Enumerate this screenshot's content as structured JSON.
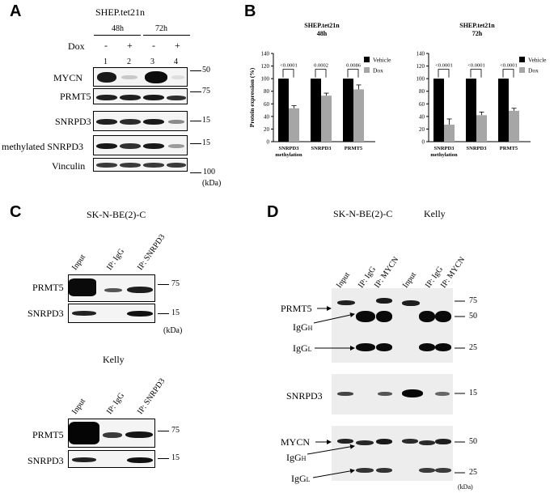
{
  "panelA": {
    "letter": "A",
    "cell_line": "SHEP.tet21n",
    "time_48": "48h",
    "time_72": "72h",
    "dox_label": "Dox",
    "dox_states": [
      "-",
      "+",
      "-",
      "+"
    ],
    "lanes": [
      "1",
      "2",
      "3",
      "4"
    ],
    "rows": [
      {
        "label": "MYCN",
        "mw": "50"
      },
      {
        "label": "PRMT5",
        "mw": "75"
      },
      {
        "label": "SNRPD3",
        "mw": "15"
      },
      {
        "label": "methylated SNRPD3",
        "mw": "15"
      },
      {
        "label": "Vinculin",
        "mw": "100"
      }
    ],
    "unit": "(kDa)"
  },
  "panelB": {
    "letter": "B",
    "legend": [
      "Vehicle",
      "Dox"
    ],
    "colors": {
      "vehicle": "#000000",
      "dox": "#a6a6a6"
    }
  },
  "chart_data": [
    {
      "type": "bar",
      "title": "SHEP.tet21n",
      "subtitle": "48h",
      "ylabel": "Protein expression (%)",
      "ylim": [
        0,
        140
      ],
      "yticks": [
        0,
        20,
        40,
        60,
        80,
        100,
        120,
        140
      ],
      "categories": [
        "SNRPD3 methylation",
        "SNRPD3",
        "PRMT5"
      ],
      "category_lines": [
        [
          "SNRPD3",
          "methylation"
        ],
        [
          "SNRPD3"
        ],
        [
          "PRMT5"
        ]
      ],
      "series": [
        {
          "name": "Vehicle",
          "values": [
            100,
            100,
            100
          ]
        },
        {
          "name": "Dox",
          "values": [
            53,
            73,
            83
          ]
        }
      ],
      "errors": [
        4,
        4,
        7
      ],
      "pvalues": [
        "<0.0001",
        "0.0002",
        "0.0086"
      ],
      "legend_position": "top-right"
    },
    {
      "type": "bar",
      "title": "SHEP.tet21n",
      "subtitle": "72h",
      "ylabel": "",
      "ylim": [
        0,
        140
      ],
      "yticks": [
        0,
        20,
        40,
        60,
        80,
        100,
        120,
        140
      ],
      "categories": [
        "SNRPD3 methylation",
        "SNRPD3",
        "PRMT5"
      ],
      "category_lines": [
        [
          "SNRPD3",
          "methylation"
        ],
        [
          "SNRPD3"
        ],
        [
          "PRMT5"
        ]
      ],
      "series": [
        {
          "name": "Vehicle",
          "values": [
            100,
            100,
            100
          ]
        },
        {
          "name": "Dox",
          "values": [
            27,
            42,
            49
          ]
        }
      ],
      "errors": [
        9,
        5,
        4
      ],
      "pvalues": [
        "<0.0001",
        "<0.0001",
        "<0.0001"
      ],
      "legend_position": "top-right"
    }
  ],
  "panelC": {
    "letter": "C",
    "cell_line_1": "SK-N-BE(2)-C",
    "cell_line_2": "Kelly",
    "lanes": [
      "Input",
      "IP: IgG",
      "IP: SNRPD3"
    ],
    "rows": [
      {
        "label": "PRMT5",
        "mw": "75"
      },
      {
        "label": "SNRPD3",
        "mw": "15"
      }
    ],
    "unit": "(kDa)"
  },
  "panelD": {
    "letter": "D",
    "cell_line_1": "SK-N-BE(2)-C",
    "cell_line_2": "Kelly",
    "lanes": [
      "Input",
      "IP: IgG",
      "IP: MYCN",
      "Input",
      "IP: IgG",
      "IP: MYCN"
    ],
    "labels": {
      "prmt5": "PRMT5",
      "igg_h": "IgG",
      "igg_h_sub": "H",
      "igg_l": "IgG",
      "igg_l_sub": "L",
      "snrpd3": "SNRPD3",
      "mycn": "MYCN"
    },
    "markers": [
      "75",
      "50",
      "25",
      "15",
      "50",
      "25"
    ],
    "unit": "(kDa)"
  }
}
